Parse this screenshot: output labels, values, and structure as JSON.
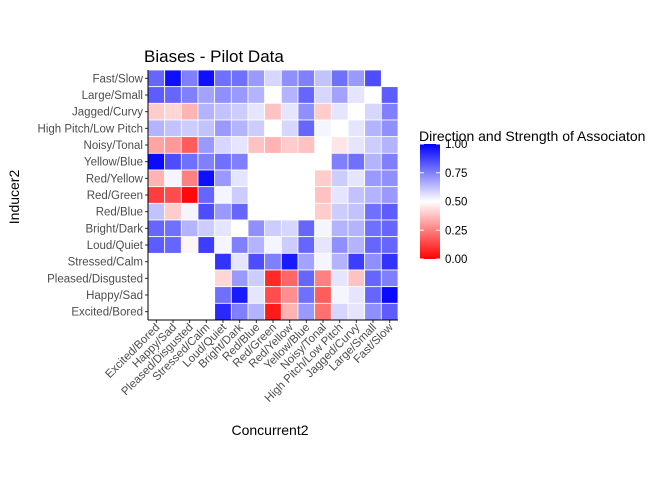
{
  "chart_data": {
    "type": "heatmap",
    "title": "Biases - Pilot Data",
    "xlabel": "Concurrent2",
    "ylabel": "Inducer2",
    "x_categories": [
      "Excited/Bored",
      "Happy/Sad",
      "Pleased/Disgusted",
      "Stressed/Calm",
      "Loud/Quiet",
      "Bright/Dark",
      "Red/Blue",
      "Red/Green",
      "Red/Yellow",
      "Yellow/Blue",
      "Noisy/Tonal",
      "High Pitch/Low Pitch",
      "Jagged/Curvy",
      "Large/Small",
      "Fast/Slow"
    ],
    "y_categories_top_to_bottom": [
      "Fast/Slow",
      "Large/Small",
      "Jagged/Curvy",
      "High Pitch/Low Pitch",
      "Noisy/Tonal",
      "Yellow/Blue",
      "Red/Yellow",
      "Red/Green",
      "Red/Blue",
      "Bright/Dark",
      "Loud/Quiet",
      "Stressed/Calm",
      "Pleased/Disgusted",
      "Happy/Sad",
      "Excited/Bored"
    ],
    "values_rows_top_to_bottom": [
      [
        0.8,
        0.97,
        0.75,
        0.97,
        0.78,
        0.78,
        0.7,
        0.58,
        0.72,
        0.75,
        0.62,
        0.78,
        0.7,
        0.85,
        null
      ],
      [
        0.82,
        0.8,
        0.75,
        0.68,
        0.72,
        0.7,
        0.65,
        0.5,
        0.65,
        0.8,
        0.58,
        0.68,
        0.55,
        null,
        0.82
      ],
      [
        0.4,
        0.42,
        0.35,
        0.65,
        0.62,
        0.6,
        0.55,
        0.38,
        0.55,
        0.72,
        0.4,
        0.55,
        null,
        0.58,
        0.75
      ],
      [
        0.65,
        0.62,
        0.6,
        0.62,
        0.7,
        0.65,
        0.6,
        0.5,
        0.58,
        0.8,
        0.52,
        null,
        0.55,
        0.65,
        0.72
      ],
      [
        0.32,
        0.3,
        0.18,
        0.7,
        0.58,
        0.55,
        0.38,
        0.35,
        0.4,
        0.38,
        null,
        0.45,
        0.55,
        0.6,
        0.65
      ],
      [
        0.98,
        0.85,
        0.78,
        0.75,
        0.78,
        0.75,
        null,
        null,
        null,
        null,
        0.5,
        0.75,
        0.78,
        0.65,
        0.75
      ],
      [
        0.35,
        0.52,
        0.25,
        0.97,
        0.7,
        0.55,
        null,
        null,
        null,
        null,
        0.4,
        0.6,
        0.55,
        0.7,
        0.72
      ],
      [
        0.12,
        0.15,
        0.02,
        0.8,
        0.52,
        0.6,
        null,
        null,
        null,
        null,
        0.38,
        0.55,
        0.62,
        0.65,
        0.7
      ],
      [
        0.62,
        0.4,
        0.52,
        0.85,
        0.7,
        0.8,
        null,
        null,
        null,
        null,
        0.4,
        0.6,
        0.62,
        0.78,
        0.82
      ],
      [
        0.8,
        0.78,
        0.65,
        0.6,
        0.55,
        0.5,
        0.72,
        0.6,
        0.58,
        0.8,
        0.52,
        0.65,
        0.65,
        0.78,
        0.8
      ],
      [
        0.82,
        0.8,
        0.48,
        0.88,
        0.52,
        0.75,
        0.65,
        0.52,
        0.6,
        0.8,
        0.55,
        0.72,
        0.65,
        0.8,
        0.8
      ],
      [
        null,
        null,
        null,
        null,
        0.9,
        0.55,
        0.85,
        0.75,
        0.95,
        0.68,
        0.52,
        0.65,
        0.88,
        0.72,
        0.9
      ],
      [
        null,
        null,
        null,
        null,
        0.42,
        0.7,
        0.6,
        0.08,
        0.2,
        0.8,
        0.25,
        0.55,
        0.38,
        0.8,
        0.75
      ],
      [
        null,
        null,
        null,
        null,
        0.78,
        0.95,
        0.55,
        0.15,
        0.28,
        0.78,
        0.18,
        0.52,
        0.55,
        0.8,
        0.98
      ],
      [
        null,
        null,
        null,
        null,
        0.92,
        0.75,
        0.65,
        0.05,
        0.35,
        0.7,
        0.22,
        0.58,
        0.55,
        0.72,
        0.82
      ]
    ],
    "legend": {
      "title": "Direction and Strength of Associaton",
      "ticks": [
        "1.00",
        "0.75",
        "0.50",
        "0.25",
        "0.00"
      ],
      "tick_values": [
        1.0,
        0.75,
        0.5,
        0.25,
        0.0
      ],
      "placement": "right",
      "low_color": "#ff0000",
      "mid_color": "#ffffff",
      "high_color": "#0000ff",
      "midpoint": 0.5
    },
    "value_range": [
      0,
      1
    ],
    "grid": false
  }
}
